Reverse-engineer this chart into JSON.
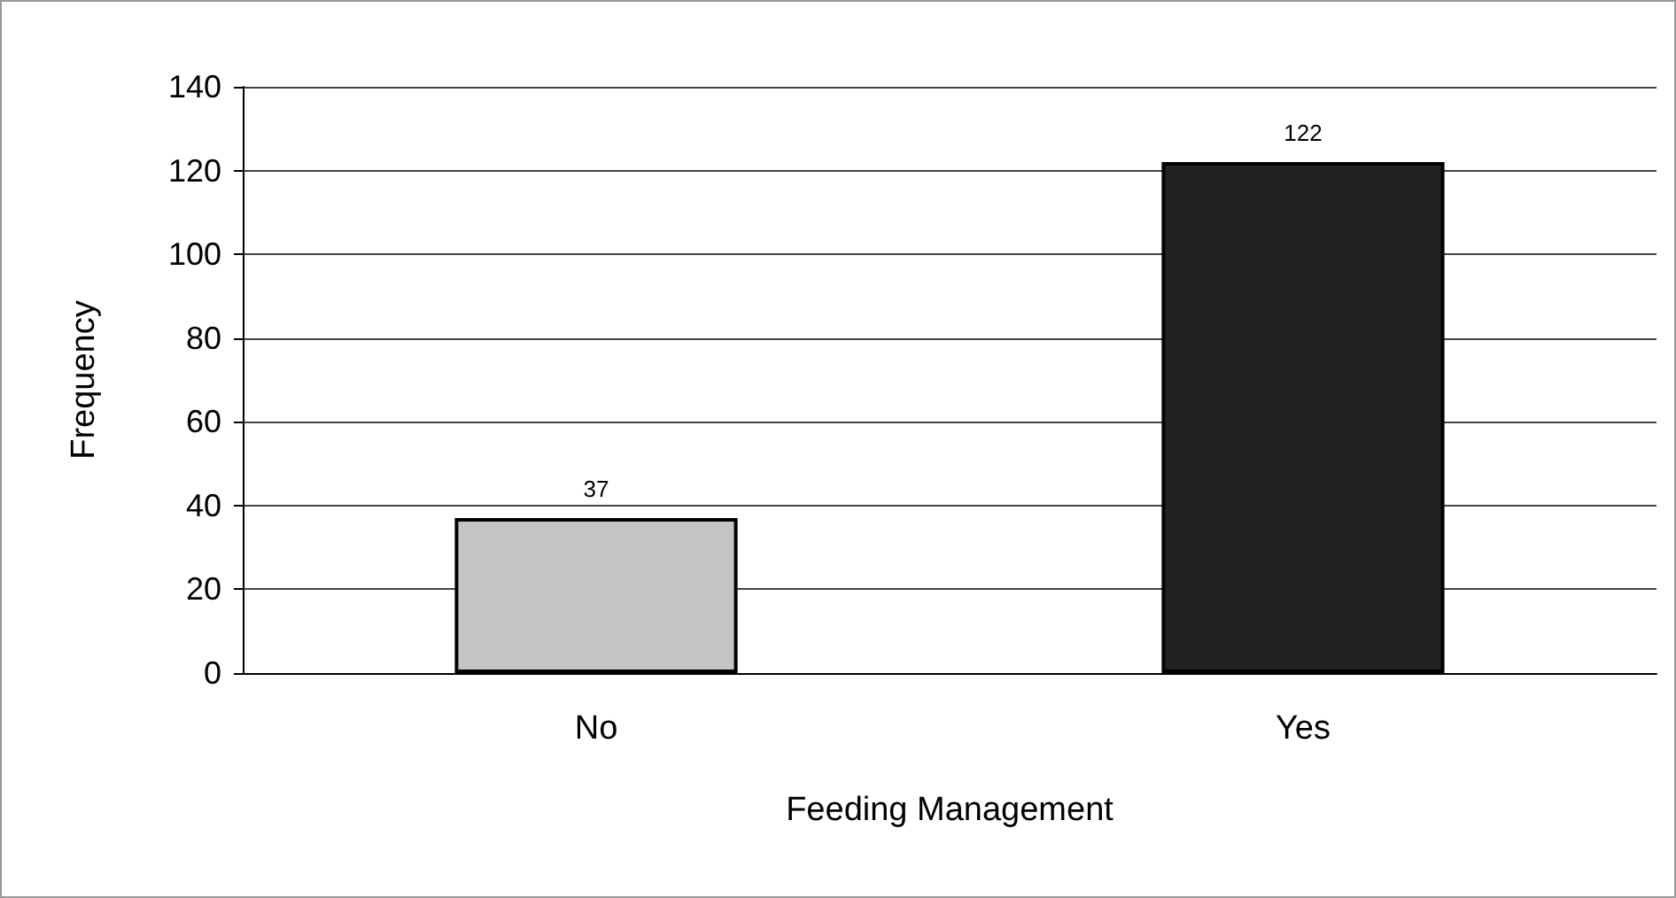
{
  "chart_data": {
    "type": "bar",
    "xlabel": "Feeding Management",
    "ylabel": "Frequency",
    "categories": [
      "No",
      "Yes"
    ],
    "values": [
      37,
      122
    ],
    "colors": [
      "#c4c4c4",
      "#222222"
    ],
    "ylim": [
      0,
      140
    ],
    "yticks": [
      0,
      20,
      40,
      60,
      80,
      100,
      120,
      140
    ],
    "grid": "y",
    "data_labels": true
  }
}
